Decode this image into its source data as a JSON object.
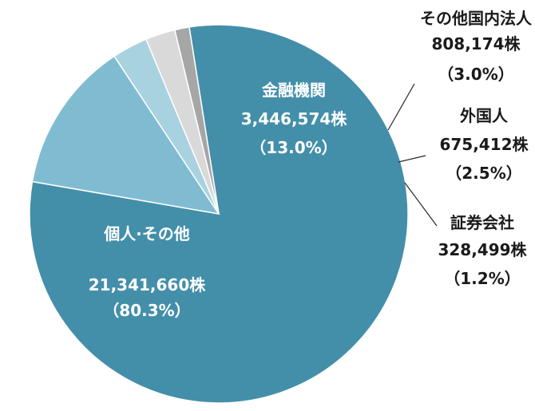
{
  "chart_data": {
    "type": "pie",
    "slices": [
      {
        "name": "個人·その他",
        "value": 21341660,
        "value_label": "21,341,660株",
        "percent_label": "（80.3%）",
        "color": "#438faa"
      },
      {
        "name": "金融機関",
        "value": 3446574,
        "value_label": "3,446,574株",
        "percent_label": "（13.0%）",
        "color": "#80bcd1"
      },
      {
        "name": "その他国内法人",
        "value": 808174,
        "value_label": "808,174株",
        "percent_label": "（3.0%）",
        "color": "#a9d2e0"
      },
      {
        "name": "外国人",
        "value": 675412,
        "value_label": "675,412株",
        "percent_label": "（2.5%）",
        "color": "#d9d9d9"
      },
      {
        "name": "証券会社",
        "value": 328499,
        "value_label": "328,499株",
        "percent_label": "（1.2%）",
        "color": "#a6a6a6"
      }
    ],
    "legend": "none"
  }
}
